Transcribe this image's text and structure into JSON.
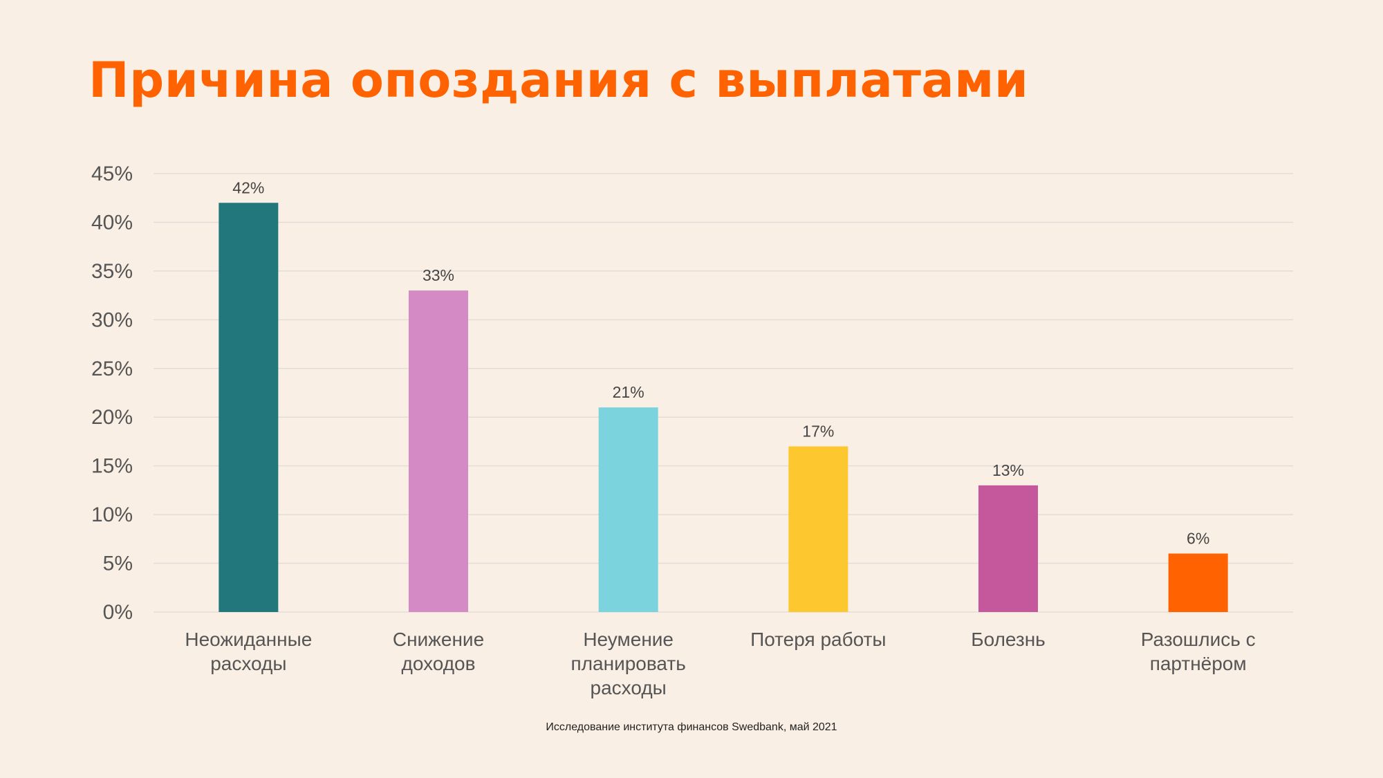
{
  "slide": {
    "background": "#faefe4",
    "title": "Причина опоздания с выплатами",
    "title_color": "#ff6200",
    "source": "Исследование института финансов Swedbank, май 2021"
  },
  "chart_data": {
    "type": "bar",
    "categories": [
      "Неожиданные расходы",
      "Снижение доходов",
      "Неумение планировать расходы",
      "Потеря работы",
      "Болезнь",
      "Разошлись с партнёром"
    ],
    "category_label_lines": [
      [
        "Неожиданные",
        "расходы"
      ],
      [
        "Снижение",
        "доходов"
      ],
      [
        "Неумение",
        "планировать",
        "расходы"
      ],
      [
        "Потеря работы"
      ],
      [
        "Болезнь"
      ],
      [
        "Разошлись с",
        "партнёром"
      ]
    ],
    "values": [
      42,
      33,
      21,
      17,
      13,
      6
    ],
    "data_labels": [
      "42%",
      "33%",
      "21%",
      "17%",
      "13%",
      "6%"
    ],
    "bar_colors": [
      "#22777d",
      "#d48ac4",
      "#7bd3dd",
      "#fdc82f",
      "#c5579c",
      "#ff6200"
    ],
    "ylim": [
      0,
      45
    ],
    "yticks": [
      0,
      5,
      10,
      15,
      20,
      25,
      30,
      35,
      40,
      45
    ],
    "ytick_labels": [
      "0%",
      "5%",
      "10%",
      "15%",
      "20%",
      "25%",
      "30%",
      "35%",
      "40%",
      "45%"
    ],
    "grid": true,
    "gridline_color": "#e2ddd8",
    "title": "",
    "xlabel": "",
    "ylabel": ""
  }
}
